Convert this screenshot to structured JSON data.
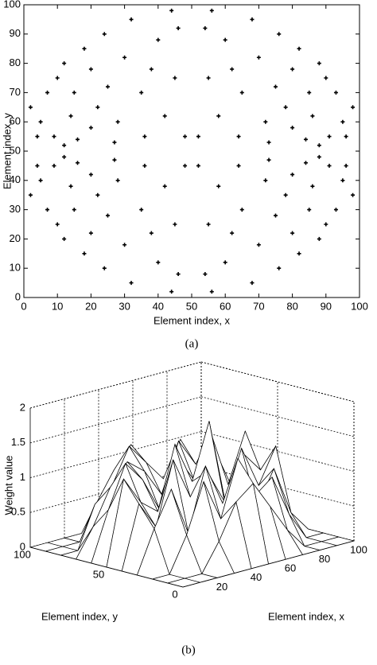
{
  "chart_data": [
    {
      "type": "scatter",
      "xlabel": "Element index, x",
      "ylabel": "Element index, y",
      "caption": "(a)",
      "xlim": [
        0,
        100
      ],
      "ylim": [
        0,
        100
      ],
      "xticks": [
        0,
        10,
        20,
        30,
        40,
        50,
        60,
        70,
        80,
        90,
        100
      ],
      "yticks": [
        0,
        10,
        20,
        30,
        40,
        50,
        60,
        70,
        80,
        90,
        100
      ],
      "color": "#000000",
      "series": [
        {
          "x": [
            2,
            4,
            5,
            7,
            9,
            10,
            12,
            14,
            16,
            15,
            18,
            20,
            22,
            24,
            25,
            28,
            30,
            32,
            35,
            36,
            40,
            42,
            44,
            45,
            48,
            46,
            38,
            27,
            20,
            12,
            98,
            96,
            95,
            93,
            91,
            90,
            88,
            86,
            84,
            85,
            82,
            80,
            78,
            76,
            75,
            72,
            70,
            68,
            65,
            64,
            60,
            58,
            56,
            55,
            52,
            54,
            62,
            73,
            80,
            88,
            2,
            4,
            5,
            7,
            9,
            10,
            12,
            14,
            16,
            15,
            18,
            20,
            22,
            24,
            25,
            28,
            30,
            32,
            35,
            36,
            40,
            42,
            44,
            45,
            48,
            46,
            38,
            27,
            20,
            12,
            98,
            96,
            95,
            93,
            91,
            90,
            88,
            86,
            84,
            85,
            82,
            80,
            78,
            76,
            75,
            72,
            70,
            68,
            65,
            64,
            60,
            58,
            56,
            55,
            52,
            54,
            62,
            73,
            80,
            88
          ],
          "y": [
            35,
            45,
            40,
            30,
            45,
            25,
            20,
            38,
            46,
            30,
            15,
            22,
            35,
            10,
            28,
            40,
            18,
            5,
            30,
            45,
            12,
            38,
            2,
            25,
            45,
            8,
            22,
            47,
            42,
            48,
            35,
            45,
            40,
            30,
            45,
            25,
            20,
            38,
            46,
            30,
            15,
            22,
            35,
            10,
            28,
            40,
            18,
            5,
            30,
            45,
            12,
            38,
            2,
            25,
            45,
            8,
            22,
            47,
            42,
            48,
            65,
            55,
            60,
            70,
            55,
            75,
            80,
            62,
            54,
            70,
            85,
            78,
            65,
            90,
            72,
            60,
            82,
            95,
            70,
            55,
            88,
            62,
            98,
            75,
            55,
            92,
            78,
            53,
            58,
            52,
            65,
            55,
            60,
            70,
            55,
            75,
            80,
            62,
            54,
            70,
            85,
            78,
            65,
            90,
            72,
            60,
            82,
            95,
            70,
            55,
            88,
            62,
            98,
            75,
            55,
            92,
            78,
            53,
            58,
            52
          ]
        }
      ]
    },
    {
      "type": "surface",
      "xlabel": "Element index, x",
      "ylabel": "Element index, y",
      "zlabel": "Weight value",
      "caption": "(b)",
      "xlim": [
        0,
        100
      ],
      "ylim": [
        0,
        100
      ],
      "zlim": [
        0,
        2
      ],
      "xticks": [
        20,
        40,
        60,
        80,
        100
      ],
      "yticks": [
        0,
        50,
        100
      ],
      "zticks": [
        0,
        0.5,
        1,
        1.5,
        2
      ],
      "x": [
        0,
        10,
        20,
        30,
        40,
        50,
        60,
        70,
        80,
        90,
        100
      ],
      "y": [
        0,
        10,
        20,
        30,
        40,
        50,
        60,
        70,
        80,
        90,
        100
      ],
      "z": [
        [
          0,
          0,
          0,
          0,
          0,
          0,
          0,
          0,
          0,
          0,
          0
        ],
        [
          0,
          0,
          0,
          0.4,
          0.9,
          1.1,
          0.7,
          0.3,
          0,
          0,
          0
        ],
        [
          0,
          0,
          0.5,
          1.2,
          0.6,
          1.4,
          0.8,
          1.0,
          0.4,
          0,
          0
        ],
        [
          0,
          0.6,
          1.1,
          0.4,
          1.3,
          0.7,
          1.2,
          0.5,
          1.0,
          0.3,
          0
        ],
        [
          0,
          0.9,
          0.5,
          1.4,
          0.8,
          1.1,
          0.6,
          1.3,
          0.7,
          1.2,
          0
        ],
        [
          0,
          1.2,
          0.8,
          0.6,
          1.5,
          0.9,
          1.7,
          0.4,
          1.1,
          0.8,
          0
        ],
        [
          0,
          0.7,
          1.3,
          1.0,
          0.5,
          1.2,
          0.8,
          1.4,
          0.6,
          1.3,
          0
        ],
        [
          0,
          0.4,
          0.9,
          1.2,
          1.0,
          0.6,
          1.3,
          0.9,
          1.1,
          0.5,
          0
        ],
        [
          0,
          0,
          0.6,
          0.8,
          1.3,
          1.0,
          0.7,
          1.2,
          0.4,
          0,
          0
        ],
        [
          0,
          0,
          0,
          0.5,
          0.9,
          1.2,
          0.8,
          0.4,
          0,
          0,
          0
        ],
        [
          0,
          0,
          0,
          0,
          0,
          0,
          0,
          0,
          0,
          0,
          0
        ]
      ]
    }
  ]
}
